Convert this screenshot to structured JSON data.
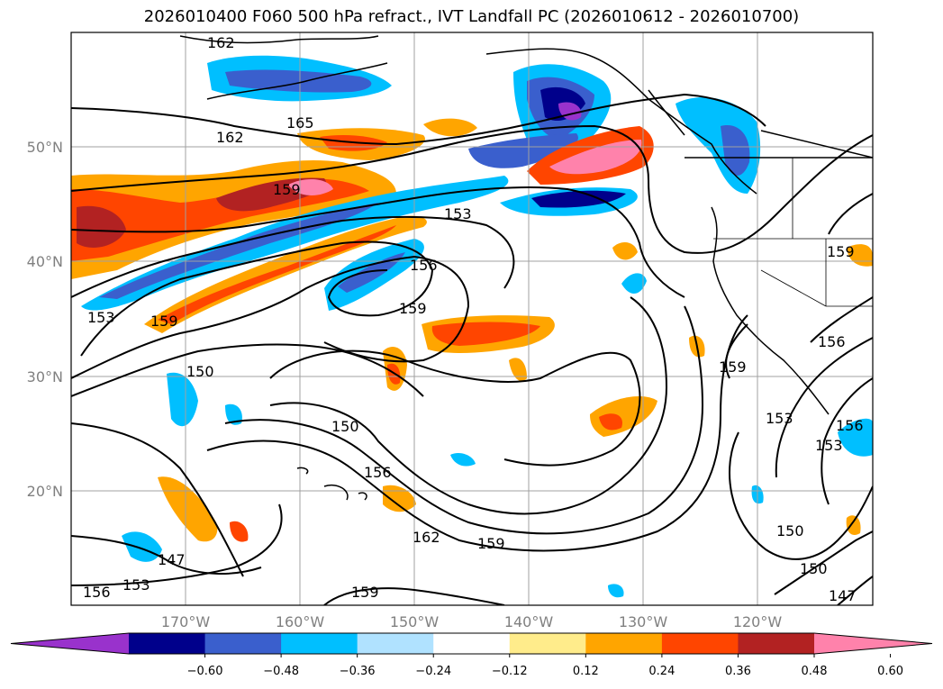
{
  "title": "2026010400 F060 500 hPa refract., IVT Landfall PC (2026010612 - 2026010700)",
  "map": {
    "lat_labels": [
      "50°N",
      "40°N",
      "30°N",
      "20°N"
    ],
    "lon_labels": [
      "170°W",
      "160°W",
      "150°W",
      "140°W",
      "130°W",
      "120°W"
    ],
    "contour_labels": [
      "162",
      "165",
      "162",
      "159",
      "153",
      "156",
      "159",
      "153",
      "159",
      "150",
      "150",
      "156",
      "162",
      "159",
      "147",
      "153",
      "156",
      "159",
      "159",
      "153",
      "156",
      "153",
      "150",
      "150",
      "147",
      "156",
      "159"
    ]
  },
  "colorbar": {
    "ticks": [
      "−0.60",
      "−0.48",
      "−0.36",
      "−0.24",
      "−0.12",
      "0.12",
      "0.24",
      "0.36",
      "0.48",
      "0.60"
    ],
    "colors": [
      "#9932cc",
      "#00008b",
      "#3a5fcd",
      "#00bfff",
      "#b0e2ff",
      "#ffffff",
      "#ffec8b",
      "#ffa500",
      "#ff4500",
      "#b22222",
      "#ff82ab"
    ]
  }
}
